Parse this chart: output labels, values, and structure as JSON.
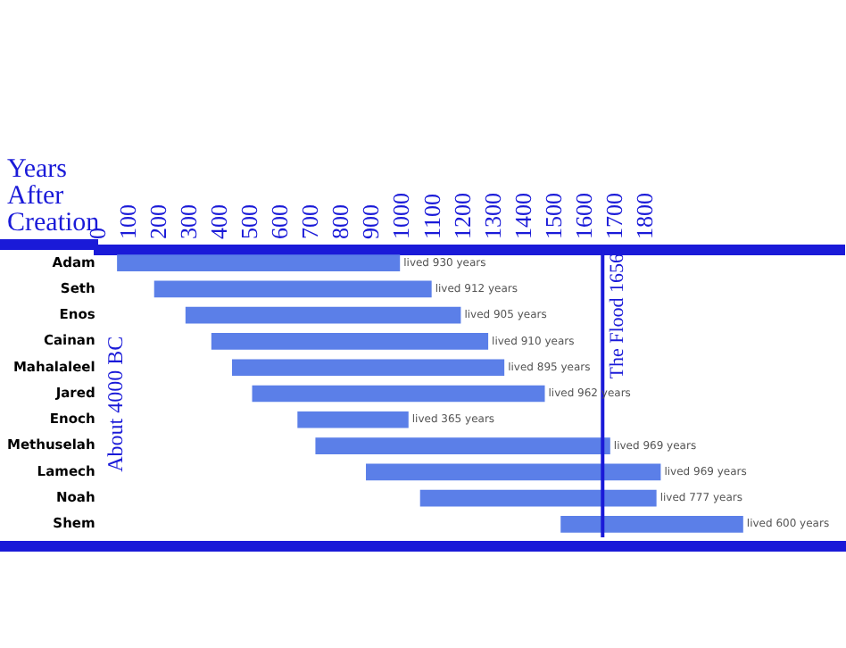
{
  "chart_data": {
    "type": "bar",
    "orientation": "horizontal",
    "xlabel": "Years After Creation",
    "categories": [
      "Adam",
      "Seth",
      "Enos",
      "Cainan",
      "Mahalaleel",
      "Jared",
      "Enoch",
      "Methuselah",
      "Lamech",
      "Noah",
      "Shem"
    ],
    "base": [
      60,
      182,
      285,
      370,
      438,
      504,
      653,
      712,
      878,
      1056,
      1518
    ],
    "values": [
      930,
      912,
      905,
      910,
      895,
      962,
      365,
      969,
      969,
      777,
      600
    ],
    "value_labels": [
      "lived 930 years",
      "lived 912 years",
      "lived 905 years",
      "lived 910 years",
      "lived 895 years",
      "lived 962 years",
      "lived 365 years",
      "lived 969 years",
      "lived 969 years",
      "lived 777 years",
      "lived 600 years"
    ],
    "color": "#5b7fe8",
    "xlim": [
      0,
      2450
    ],
    "xticks": [
      0,
      100,
      200,
      300,
      400,
      500,
      600,
      700,
      800,
      900,
      1000,
      1100,
      1200,
      1300,
      1400,
      1500,
      1600,
      1700,
      1800
    ],
    "ref_lines": [
      {
        "axis": "x",
        "value": 1656,
        "label": "The Flood 1656",
        "color": "#1a1ad8"
      }
    ],
    "annotations": [
      "About 4000 BC"
    ],
    "grid": false,
    "legend": false
  }
}
